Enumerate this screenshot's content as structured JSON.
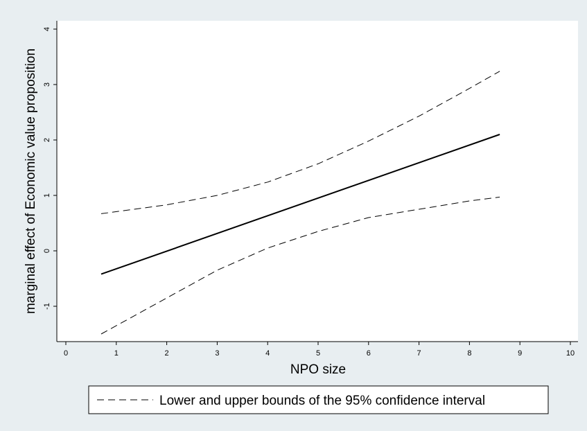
{
  "chart_data": {
    "type": "line",
    "title": "",
    "xlabel": "NPO size",
    "ylabel": "marginal effect of Economic value proposition",
    "xlim": [
      0,
      10
    ],
    "ylim": [
      -1.6,
      4.2
    ],
    "x_ticks": [
      0,
      1,
      2,
      3,
      4,
      5,
      6,
      7,
      8,
      9,
      10
    ],
    "y_ticks": [
      -1,
      0,
      1,
      2,
      3,
      4
    ],
    "grid": false,
    "legend_position": "bottom",
    "series": [
      {
        "role": "estimate",
        "style": "solid",
        "x": [
          0.7,
          8.6
        ],
        "y": [
          -0.42,
          2.1
        ]
      },
      {
        "role": "upper",
        "name": "Lower and upper bounds of the 95% confidence interval",
        "style": "dashed",
        "x": [
          0.7,
          2,
          3,
          4,
          5,
          6,
          7,
          8,
          8.6
        ],
        "y": [
          0.67,
          0.83,
          1.0,
          1.24,
          1.57,
          1.98,
          2.43,
          2.93,
          3.24
        ]
      },
      {
        "role": "lower",
        "style": "dashed",
        "x": [
          0.7,
          2,
          3,
          4,
          5,
          6,
          7,
          8,
          8.6
        ],
        "y": [
          -1.5,
          -0.85,
          -0.35,
          0.05,
          0.35,
          0.6,
          0.75,
          0.9,
          0.97
        ]
      }
    ]
  },
  "legend": {
    "label": "Lower and upper bounds of the 95% confidence interval"
  },
  "colors": {
    "background": "#e8eef1",
    "plot_background": "#ffffff",
    "line": "#000000"
  }
}
